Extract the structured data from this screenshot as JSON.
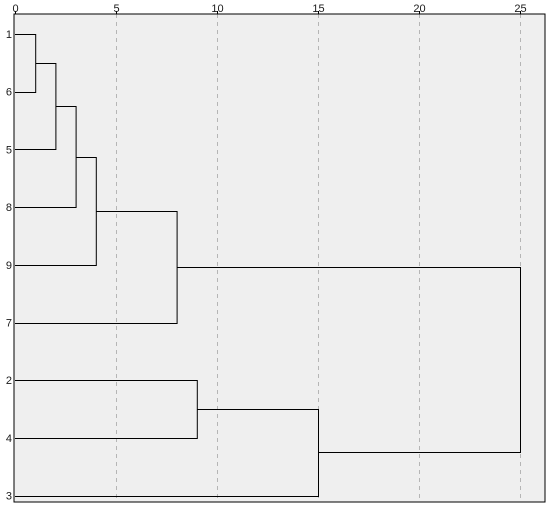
{
  "chart_data": {
    "type": "dendrogram",
    "orientation": "horizontal",
    "xlim": [
      0,
      25
    ],
    "x_ticks": [
      0,
      5,
      10,
      15,
      20,
      25
    ],
    "x_tick_labels": [
      "0",
      "5",
      "10",
      "15",
      "20",
      "25"
    ],
    "grid": "vertical-dashed",
    "leaf_order": [
      "1",
      "6",
      "5",
      "8",
      "9",
      "7",
      "2",
      "4",
      "3"
    ],
    "merges": [
      {
        "a": "1",
        "b": "6",
        "distance": 1
      },
      {
        "a": "1+6",
        "b": "5",
        "distance": 2
      },
      {
        "a": "1+6+5",
        "b": "8",
        "distance": 3
      },
      {
        "a": "1+6+5+8",
        "b": "9",
        "distance": 4
      },
      {
        "a": "1+6+5+8+9",
        "b": "7",
        "distance": 8
      },
      {
        "a": "2",
        "b": "4",
        "distance": 9
      },
      {
        "a": "2+4",
        "b": "3",
        "distance": 15
      },
      {
        "a": "1+6+5+8+9+7",
        "b": "2+4+3",
        "distance": 25
      }
    ],
    "colors": {
      "plot_background": "#efefef",
      "frame": "#000000",
      "link": "#000000",
      "grid": "#b5b5b5"
    }
  }
}
